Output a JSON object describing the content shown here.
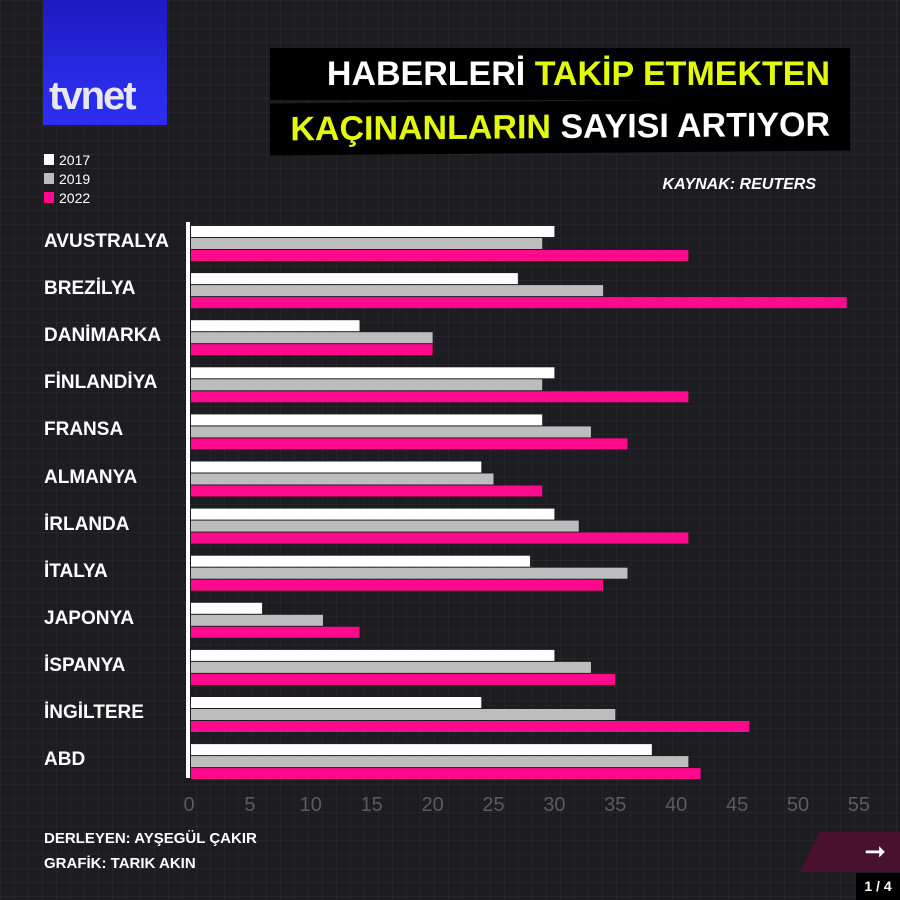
{
  "brand": {
    "logo_text": "tvnet"
  },
  "header": {
    "title_line1_white": "HABERLERİ",
    "title_line1_highlight": "TAKİP ETMEKTEN",
    "title_line2_highlight": "KAÇINANLARIN",
    "title_line2_white": "SAYISI ARTIYOR",
    "source": "KAYNAK: REUTERS"
  },
  "footer": {
    "compiler": "DERLEYEN: AYŞEGÜL ÇAKIR",
    "graphic": "GRAFİK: TARIK AKIN",
    "page": "1 / 4",
    "next_icon": "arrow-right-icon"
  },
  "chart_data": {
    "type": "bar",
    "orientation": "horizontal",
    "title": "HABERLERİ TAKİP ETMEKTEN KAÇINANLARIN SAYISI ARTIYOR",
    "categories": [
      "AVUSTRALYA",
      "BREZİLYA",
      "DANİMARKA",
      "FİNLANDİYA",
      "FRANSA",
      "ALMANYA",
      "İRLANDA",
      "İTALYA",
      "JAPONYA",
      "İSPANYA",
      "İNGİLTERE",
      "ABD"
    ],
    "series": [
      {
        "name": "2017",
        "color": "#ffffff",
        "values": [
          30,
          27,
          14,
          30,
          29,
          24,
          30,
          28,
          6,
          30,
          24,
          38
        ]
      },
      {
        "name": "2019",
        "color": "#bdbdbd",
        "values": [
          29,
          34,
          20,
          29,
          33,
          25,
          32,
          36,
          11,
          33,
          35,
          41
        ]
      },
      {
        "name": "2022",
        "color": "#ff0a8c",
        "values": [
          41,
          54,
          20,
          41,
          36,
          29,
          41,
          34,
          14,
          35,
          46,
          42
        ]
      }
    ],
    "xticks": [
      "0",
      "5",
      "10",
      "15",
      "20",
      "25",
      "30",
      "35",
      "40",
      "45",
      "50",
      "55"
    ],
    "xlim": [
      0,
      55
    ],
    "legend": "top-left",
    "grid": false
  }
}
